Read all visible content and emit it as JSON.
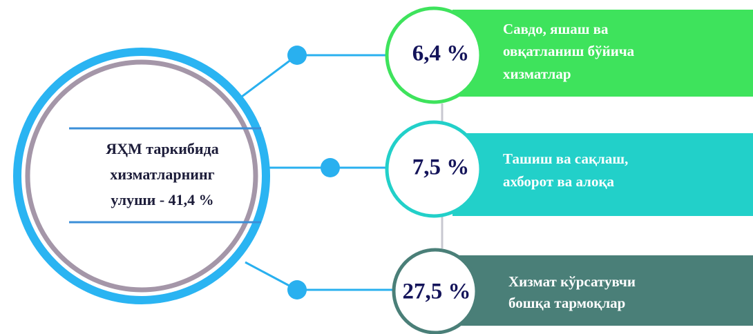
{
  "center": {
    "lines": [
      "ЯҲМ таркибида",
      "хизматларнинг",
      "улуши - 41,4 %"
    ]
  },
  "items": [
    {
      "percent": "6,4 %",
      "lines": [
        "Савдо, яшаш ва",
        "овқатланиш бўйича",
        "хизматлар"
      ]
    },
    {
      "percent": "7,5 %",
      "lines": [
        "Ташиш ва сақлаш,",
        "ахборот ва алоқа"
      ]
    },
    {
      "percent": "27,5 %",
      "lines": [
        "Хизмат кўрсатувчи",
        "бошқа тармоқлар"
      ]
    }
  ]
}
